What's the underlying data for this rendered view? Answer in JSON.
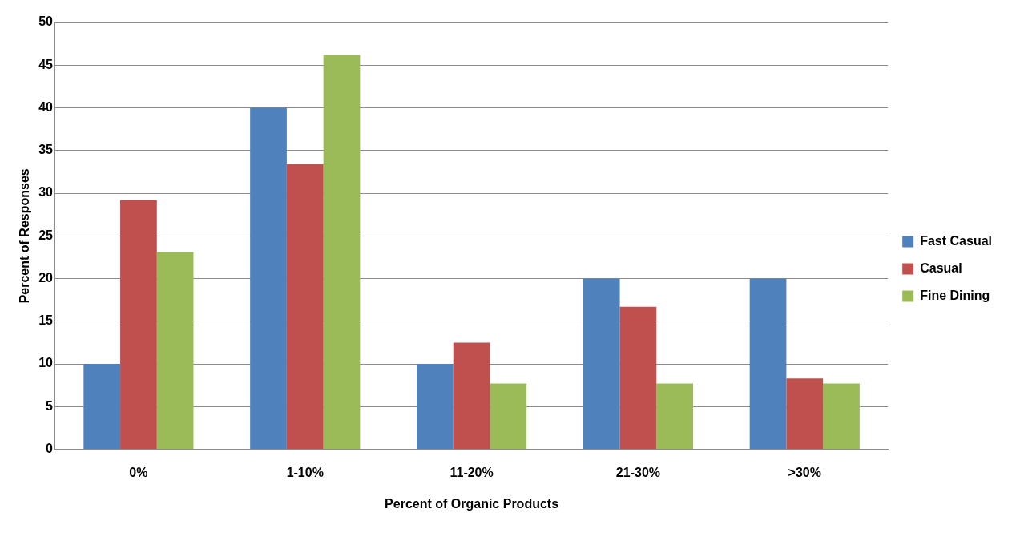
{
  "chart_data": {
    "type": "bar",
    "xlabel": "Percent of Organic Products",
    "ylabel": "Percent of Responses",
    "categories": [
      "0%",
      "1-10%",
      "11-20%",
      "21-30%",
      ">30%"
    ],
    "series": [
      {
        "name": "Fast Casual",
        "color": "#4f81bd",
        "values": [
          10,
          40,
          10,
          20,
          20
        ]
      },
      {
        "name": "Casual",
        "color": "#c0504d",
        "values": [
          29.2,
          33.4,
          12.5,
          16.7,
          8.3
        ]
      },
      {
        "name": "Fine Dining",
        "color": "#9bbb59",
        "values": [
          23.1,
          46.2,
          7.7,
          7.7,
          7.7
        ]
      }
    ],
    "ylim": [
      0,
      50
    ],
    "yticks": [
      0,
      5,
      10,
      15,
      20,
      25,
      30,
      35,
      40,
      45,
      50
    ],
    "grid": "y",
    "legend": "right"
  }
}
